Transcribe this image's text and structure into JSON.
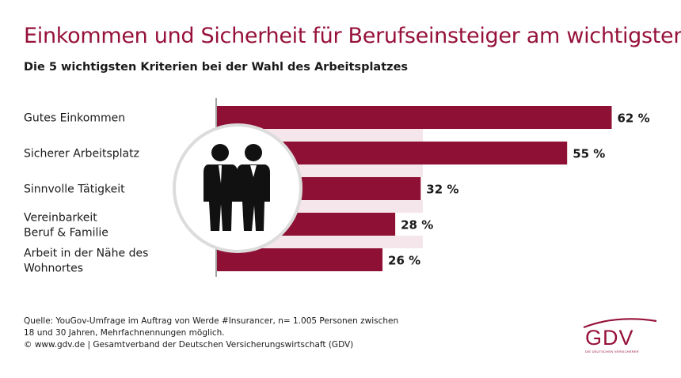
{
  "title": "Einkommen und Sicherheit für Berufseinsteiger am wichtigsten",
  "subtitle": "Die 5 wichtigsten Kriterien bei der Wahl des Arbeitsplatzes",
  "colors": {
    "accent": "#96123a",
    "bar": "#8f1035",
    "stripe": "#f4e6ea"
  },
  "chart_data": {
    "type": "bar",
    "orientation": "horizontal",
    "categories": [
      [
        "Gutes Einkommen"
      ],
      [
        "Sicherer Arbeitsplatz"
      ],
      [
        "Sinnvolle Tätigkeit"
      ],
      [
        "Vereinbarkeit",
        "Beruf & Familie"
      ],
      [
        "Arbeit in der Nähe des",
        "Wohnortes"
      ]
    ],
    "values": [
      62,
      55,
      32,
      28,
      26
    ],
    "value_labels": [
      "62 %",
      "55 %",
      "32 %",
      "28 %",
      "26 %"
    ],
    "unit": "%",
    "xlim": [
      0,
      100
    ],
    "grid": false,
    "legend": "none",
    "decoration_icon": "business-people-icon"
  },
  "source": {
    "lines": [
      "Quelle: YouGov-Umfrage im Auftrag von Werde #Insurancer, n= 1.005 Personen zwischen",
      "18 und 30 Jahren, Mehrfachnennungen möglich.",
      "© www.gdv.de | Gesamtverband der Deutschen Versicherungswirtschaft (GDV)"
    ]
  },
  "logo": {
    "text": "GDV",
    "subtext": "DIE DEUTSCHEN VERSICHERER"
  }
}
